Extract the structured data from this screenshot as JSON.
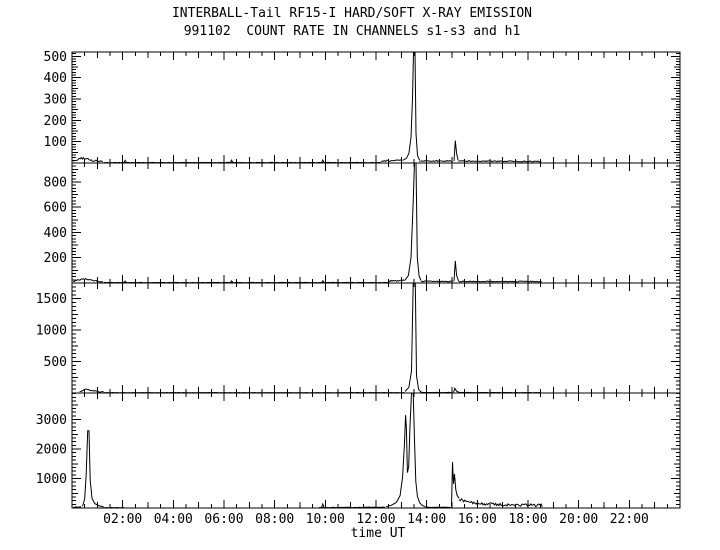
{
  "header": {
    "title": "INTERBALL-Tail RF15-I HARD/SOFT X-RAY EMISSION",
    "subtitle": "991102  COUNT RATE IN CHANNELS s1-s3 and h1"
  },
  "colors": {
    "foreground": "#000000",
    "background": "#ffffff"
  },
  "chart_data": {
    "type": "line",
    "title": "INTERBALL-Tail RF15-I HARD/SOFT X-RAY EMISSION",
    "subtitle": "991102  COUNT RATE IN CHANNELS s1-s3 and h1",
    "grid": false,
    "legend": false,
    "line_color": "#000000",
    "x_axis": {
      "label": "time UT",
      "unit": "hours",
      "range": [
        0,
        24
      ],
      "major_step_h": 2,
      "minor_step_h": 0.5,
      "tick_hours": [
        2,
        4,
        6,
        8,
        10,
        12,
        14,
        16,
        18,
        20,
        22
      ],
      "tick_labels": [
        "02:00",
        "04:00",
        "06:00",
        "08:00",
        "10:00",
        "12:00",
        "14:00",
        "16:00",
        "18:00",
        "20:00",
        "22:00"
      ]
    },
    "panels": [
      {
        "channel": "s1",
        "ylabel_ticks": [
          "100",
          "200",
          "300",
          "400",
          "500"
        ],
        "ytick_values": [
          100,
          200,
          300,
          400,
          500
        ],
        "ylim": [
          0,
          520
        ],
        "segments": [
          {
            "kind": "noise",
            "amp": 9,
            "profile": [
              [
                0.05,
                3
              ],
              [
                0.2,
                13
              ],
              [
                0.35,
                19
              ],
              [
                0.55,
                15
              ],
              [
                0.8,
                7
              ],
              [
                1.25,
                2
              ]
            ]
          },
          {
            "kind": "noise",
            "amp": 2,
            "profile": [
              [
                1.25,
                1
              ],
              [
                12.2,
                1
              ]
            ]
          },
          {
            "kind": "line",
            "points": [
              [
                2.05,
                2
              ],
              [
                2.1,
                12
              ],
              [
                2.15,
                2
              ]
            ]
          },
          {
            "kind": "line",
            "points": [
              [
                6.25,
                2
              ],
              [
                6.3,
                13
              ],
              [
                6.35,
                2
              ]
            ]
          },
          {
            "kind": "line",
            "points": [
              [
                9.85,
                2
              ],
              [
                9.9,
                14
              ],
              [
                9.95,
                2
              ]
            ]
          },
          {
            "kind": "noise",
            "amp": 7,
            "profile": [
              [
                12.2,
                5
              ],
              [
                13.05,
                9
              ]
            ]
          },
          {
            "kind": "line",
            "points": [
              [
                13.05,
                12
              ],
              [
                13.2,
                22
              ],
              [
                13.3,
                45
              ],
              [
                13.38,
                120
              ],
              [
                13.44,
                300
              ],
              [
                13.48,
                540
              ],
              [
                13.54,
                540
              ],
              [
                13.58,
                140
              ],
              [
                13.64,
                35
              ],
              [
                13.72,
                12
              ]
            ]
          },
          {
            "kind": "noise",
            "amp": 5,
            "profile": [
              [
                13.72,
                7
              ],
              [
                15.05,
                7
              ]
            ]
          },
          {
            "kind": "line",
            "points": [
              [
                15.08,
                9
              ],
              [
                15.13,
                105
              ],
              [
                15.18,
                45
              ],
              [
                15.24,
                14
              ]
            ]
          },
          {
            "kind": "noise",
            "amp": 5,
            "profile": [
              [
                15.24,
                7
              ],
              [
                18.55,
                5
              ]
            ]
          }
        ]
      },
      {
        "channel": "s2",
        "ylabel_ticks": [
          "200",
          "400",
          "600",
          "800"
        ],
        "ytick_values": [
          200,
          400,
          600,
          800
        ],
        "ylim": [
          0,
          950
        ],
        "segments": [
          {
            "kind": "noise",
            "amp": 11,
            "profile": [
              [
                0.05,
                5
              ],
              [
                0.25,
                20
              ],
              [
                0.45,
                28
              ],
              [
                0.7,
                20
              ],
              [
                1.0,
                9
              ],
              [
                1.25,
                3
              ]
            ]
          },
          {
            "kind": "noise",
            "amp": 3,
            "profile": [
              [
                1.25,
                2
              ],
              [
                12.5,
                2
              ]
            ]
          },
          {
            "kind": "line",
            "points": [
              [
                2.05,
                3
              ],
              [
                2.1,
                15
              ],
              [
                2.15,
                3
              ]
            ]
          },
          {
            "kind": "line",
            "points": [
              [
                6.25,
                3
              ],
              [
                6.3,
                17
              ],
              [
                6.35,
                3
              ]
            ]
          },
          {
            "kind": "line",
            "points": [
              [
                9.85,
                3
              ],
              [
                9.9,
                18
              ],
              [
                9.95,
                3
              ]
            ]
          },
          {
            "kind": "noise",
            "amp": 10,
            "profile": [
              [
                12.5,
                10
              ],
              [
                13.15,
                16
              ]
            ]
          },
          {
            "kind": "line",
            "points": [
              [
                13.15,
                22
              ],
              [
                13.28,
                60
              ],
              [
                13.38,
                200
              ],
              [
                13.46,
                600
              ],
              [
                13.52,
                980
              ],
              [
                13.58,
                980
              ],
              [
                13.63,
                200
              ],
              [
                13.7,
                55
              ],
              [
                13.78,
                18
              ]
            ]
          },
          {
            "kind": "noise",
            "amp": 7,
            "profile": [
              [
                13.78,
                10
              ],
              [
                15.05,
                9
              ]
            ]
          },
          {
            "kind": "line",
            "points": [
              [
                15.08,
                13
              ],
              [
                15.13,
                175
              ],
              [
                15.18,
                60
              ],
              [
                15.26,
                16
              ]
            ]
          },
          {
            "kind": "noise",
            "amp": 7,
            "profile": [
              [
                15.26,
                9
              ],
              [
                18.55,
                8
              ]
            ]
          }
        ]
      },
      {
        "channel": "s3",
        "ylabel_ticks": [
          "500",
          "1000",
          "1500"
        ],
        "ytick_values": [
          500,
          1000,
          1500
        ],
        "ylim": [
          0,
          1750
        ],
        "segments": [
          {
            "kind": "noise",
            "amp": 16,
            "profile": [
              [
                0.3,
                12
              ],
              [
                0.5,
                52
              ],
              [
                0.7,
                40
              ],
              [
                0.95,
                20
              ],
              [
                1.25,
                6
              ]
            ]
          },
          {
            "kind": "noise",
            "amp": 5,
            "profile": [
              [
                1.25,
                3
              ],
              [
                13.15,
                3
              ]
            ]
          },
          {
            "kind": "line",
            "points": [
              [
                13.15,
                25
              ],
              [
                13.3,
                90
              ],
              [
                13.4,
                350
              ],
              [
                13.47,
                1800
              ],
              [
                13.55,
                1800
              ],
              [
                13.6,
                280
              ],
              [
                13.68,
                55
              ],
              [
                13.78,
                14
              ]
            ]
          },
          {
            "kind": "noise",
            "amp": 6,
            "profile": [
              [
                13.78,
                6
              ],
              [
                15.0,
                5
              ]
            ]
          },
          {
            "kind": "line",
            "points": [
              [
                15.06,
                10
              ],
              [
                15.11,
                75
              ],
              [
                15.18,
                28
              ],
              [
                15.28,
                9
              ]
            ]
          },
          {
            "kind": "noise",
            "amp": 5,
            "profile": [
              [
                15.28,
                5
              ],
              [
                18.55,
                4
              ]
            ]
          }
        ]
      },
      {
        "channel": "h1",
        "ylabel_ticks": [
          "1000",
          "2000",
          "3000"
        ],
        "ytick_values": [
          1000,
          2000,
          3000
        ],
        "ylim": [
          0,
          3900
        ],
        "segments": [
          {
            "kind": "noise",
            "amp": 28,
            "profile": [
              [
                0.05,
                15
              ],
              [
                0.4,
                25
              ]
            ]
          },
          {
            "kind": "line",
            "points": [
              [
                0.42,
                60
              ],
              [
                0.5,
                320
              ],
              [
                0.56,
                1150
              ],
              [
                0.62,
                2620
              ],
              [
                0.67,
                2620
              ],
              [
                0.72,
                950
              ],
              [
                0.79,
                330
              ],
              [
                0.9,
                150
              ],
              [
                1.05,
                80
              ],
              [
                1.25,
                35
              ]
            ]
          },
          {
            "kind": "noise",
            "amp": 12,
            "profile": [
              [
                1.25,
                8
              ],
              [
                2.1,
                4
              ]
            ]
          },
          {
            "kind": "line",
            "points": [
              [
                9.85,
                20
              ],
              [
                9.9,
                135
              ],
              [
                9.95,
                20
              ]
            ]
          },
          {
            "kind": "noise",
            "amp": 16,
            "profile": [
              [
                9.75,
                8
              ],
              [
                11.0,
                10
              ],
              [
                12.4,
                18
              ]
            ]
          },
          {
            "kind": "line",
            "points": [
              [
                12.4,
                45
              ],
              [
                12.6,
                90
              ],
              [
                12.8,
                185
              ],
              [
                12.95,
                420
              ],
              [
                13.05,
                1050
              ],
              [
                13.12,
                2150
              ],
              [
                13.17,
                3150
              ],
              [
                13.2,
                2700
              ],
              [
                13.24,
                1200
              ],
              [
                13.29,
                1400
              ],
              [
                13.34,
                2700
              ],
              [
                13.4,
                3950
              ],
              [
                13.47,
                3950
              ],
              [
                13.52,
                2300
              ],
              [
                13.57,
                900
              ],
              [
                13.64,
                380
              ],
              [
                13.73,
                170
              ],
              [
                13.83,
                85
              ],
              [
                13.95,
                40
              ]
            ]
          },
          {
            "kind": "noise",
            "amp": 16,
            "profile": [
              [
                13.95,
                18
              ],
              [
                14.95,
                15
              ]
            ]
          },
          {
            "kind": "line",
            "points": [
              [
                14.98,
                50
              ],
              [
                15.02,
                1560
              ],
              [
                15.06,
                820
              ],
              [
                15.1,
                1150
              ],
              [
                15.15,
                620
              ],
              [
                15.2,
                430
              ],
              [
                15.28,
                330
              ]
            ]
          },
          {
            "kind": "noise",
            "amp": 95,
            "profile": [
              [
                15.28,
                240
              ],
              [
                15.6,
                150
              ],
              [
                16.1,
                100
              ],
              [
                17.0,
                70
              ],
              [
                18.0,
                50
              ],
              [
                18.6,
                40
              ]
            ]
          }
        ]
      }
    ]
  }
}
